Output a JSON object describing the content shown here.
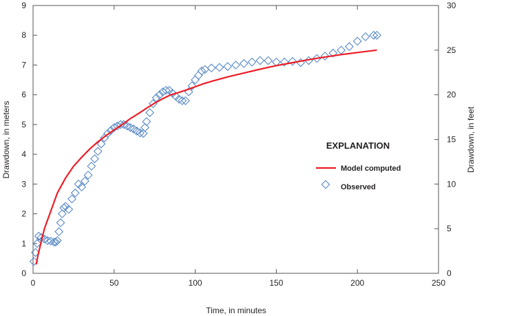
{
  "chart_data": {
    "type": "line",
    "xlabel": "Time, in minutes",
    "ylabel": "Drawdown, in meters",
    "ylabel_right": "Drawdown, in feet",
    "xlim": [
      0,
      250
    ],
    "ylim": [
      0,
      9
    ],
    "ylim_right": [
      0,
      30
    ],
    "x_ticks": [
      "0",
      "50",
      "100",
      "150",
      "200",
      "250"
    ],
    "y_ticks": [
      "0",
      "1",
      "2",
      "3",
      "4",
      "5",
      "6",
      "7",
      "8",
      "9"
    ],
    "y_right_ticks": [
      "0",
      "5",
      "10",
      "15",
      "20",
      "25",
      "30"
    ],
    "grid": false,
    "legend": {
      "title": "EXPLANATION",
      "placement": "center-right"
    },
    "colors": {
      "model": "#ee1c25",
      "observed": "#4a7fc1"
    },
    "series": [
      {
        "name": "Model computed",
        "type": "line",
        "x": [
          2,
          3,
          5,
          7,
          10,
          12,
          15,
          18,
          20,
          25,
          30,
          35,
          40,
          45,
          50,
          55,
          60,
          65,
          70,
          75,
          80,
          85,
          90,
          95,
          100,
          105,
          110,
          120,
          130,
          140,
          150,
          160,
          170,
          180,
          190,
          200,
          212
        ],
        "y": [
          0.3,
          0.6,
          1.05,
          1.5,
          1.95,
          2.25,
          2.7,
          3.0,
          3.2,
          3.6,
          3.9,
          4.18,
          4.42,
          4.63,
          4.82,
          5.0,
          5.2,
          5.37,
          5.55,
          5.72,
          5.87,
          6.0,
          6.08,
          6.17,
          6.27,
          6.37,
          6.45,
          6.6,
          6.73,
          6.86,
          6.98,
          7.08,
          7.18,
          7.27,
          7.35,
          7.42,
          7.5
        ]
      },
      {
        "name": "Observed",
        "type": "scatter",
        "x": [
          0.5,
          1.5,
          2.5,
          3.5,
          5,
          7,
          9,
          11,
          13,
          14,
          15,
          16,
          17,
          18,
          19,
          20,
          22,
          24,
          26,
          28,
          30,
          32,
          34,
          36,
          38,
          40,
          42,
          44,
          46,
          48,
          50,
          52,
          54,
          56,
          58,
          60,
          62,
          64,
          66,
          68,
          69,
          70,
          72,
          74,
          76,
          78,
          80,
          82,
          84,
          86,
          88,
          90,
          92,
          94,
          96,
          98,
          100,
          102,
          104,
          106,
          110,
          115,
          120,
          125,
          130,
          135,
          140,
          145,
          150,
          155,
          160,
          165,
          170,
          175,
          180,
          185,
          190,
          195,
          200,
          205,
          210,
          212
        ],
        "y": [
          0.4,
          0.7,
          1.0,
          1.25,
          1.2,
          1.15,
          1.1,
          1.08,
          1.05,
          1.05,
          1.1,
          1.4,
          1.7,
          2.0,
          2.2,
          2.25,
          2.15,
          2.5,
          2.7,
          3.0,
          2.9,
          3.1,
          3.3,
          3.6,
          3.85,
          4.1,
          4.35,
          4.55,
          4.7,
          4.8,
          4.9,
          4.95,
          5.0,
          5.0,
          4.95,
          4.9,
          4.85,
          4.78,
          4.72,
          4.7,
          4.9,
          5.1,
          5.4,
          5.7,
          5.9,
          6.0,
          6.1,
          6.15,
          6.15,
          6.05,
          5.95,
          5.85,
          5.8,
          5.8,
          6.1,
          6.3,
          6.5,
          6.65,
          6.8,
          6.85,
          6.9,
          6.92,
          6.95,
          7.0,
          7.05,
          7.1,
          7.15,
          7.15,
          7.1,
          7.1,
          7.12,
          7.08,
          7.15,
          7.22,
          7.3,
          7.4,
          7.5,
          7.62,
          7.8,
          7.95,
          8.0,
          8.0
        ]
      }
    ]
  }
}
